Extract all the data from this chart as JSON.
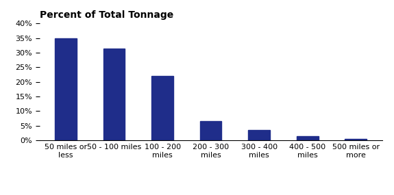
{
  "categories": [
    "50 miles or\nless",
    "50 - 100 miles",
    "100 - 200\nmiles",
    "200 - 300\nmiles",
    "300 - 400\nmiles",
    "400 - 500\nmiles",
    "500 miles or\nmore"
  ],
  "values": [
    0.35,
    0.315,
    0.22,
    0.065,
    0.036,
    0.014,
    0.005
  ],
  "bar_color": "#1f2d8a",
  "title": "Percent of Total Tonnage",
  "ylim": [
    0,
    0.4
  ],
  "yticks": [
    0.0,
    0.05,
    0.1,
    0.15,
    0.2,
    0.25,
    0.3,
    0.35,
    0.4
  ],
  "ytick_labels": [
    "0%",
    "5%",
    "10%",
    "15%",
    "20%",
    "25%",
    "30%",
    "35%",
    "40%"
  ],
  "title_fontsize": 10,
  "tick_fontsize": 8,
  "bar_width": 0.45,
  "background_color": "#ffffff"
}
